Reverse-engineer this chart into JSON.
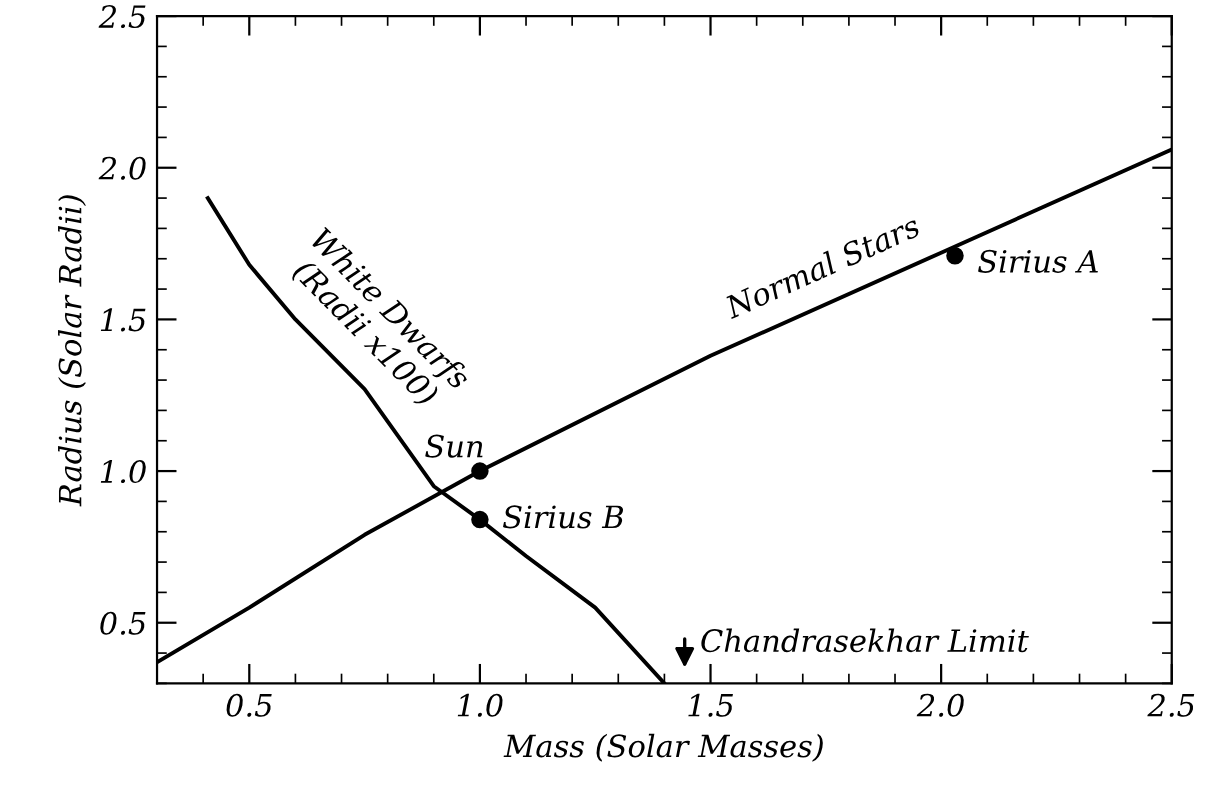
{
  "chart_data": {
    "type": "line",
    "xlabel": "Mass (Solar Masses)",
    "ylabel": "Radius (Solar Radii)",
    "xlim": [
      0.3,
      2.5
    ],
    "ylim": [
      0.3,
      2.5
    ],
    "xticks": [
      0.5,
      {
        "value": 1.0,
        "label": "1.0"
      },
      1.5,
      {
        "value": 2.0,
        "label": "2.0"
      },
      2.5
    ],
    "yticks": [
      0.5,
      {
        "value": 1.0,
        "label": "1.0"
      },
      1.5,
      {
        "value": 2.0,
        "label": "2.0"
      },
      2.5
    ],
    "grid": false,
    "legend": false,
    "marker": "none",
    "line_style": "solid",
    "series": [
      {
        "name": "Normal Stars",
        "color": "#000000",
        "x": [
          0.3,
          0.5,
          0.75,
          1.0,
          1.5,
          2.0,
          2.5
        ],
        "values": [
          0.37,
          0.55,
          0.79,
          1.0,
          1.38,
          1.72,
          2.06
        ]
      },
      {
        "name": "White Dwarfs (Radii x100)",
        "color": "#000000",
        "x": [
          0.41,
          0.5,
          0.6,
          0.75,
          0.9,
          1.0,
          1.1,
          1.25,
          1.4
        ],
        "values": [
          1.9,
          1.68,
          1.5,
          1.27,
          0.95,
          0.84,
          0.72,
          0.55,
          0.3
        ]
      },
      {
        "type": "scatter",
        "marker": "circle",
        "color": "#000000",
        "x": [
          1.0,
          1.0,
          2.03
        ],
        "values": [
          1.0,
          0.84,
          1.71
        ]
      }
    ],
    "annotations": [
      "Sun",
      "Sirius B",
      "Sirius A",
      "Chandrasekhar Limit"
    ]
  }
}
